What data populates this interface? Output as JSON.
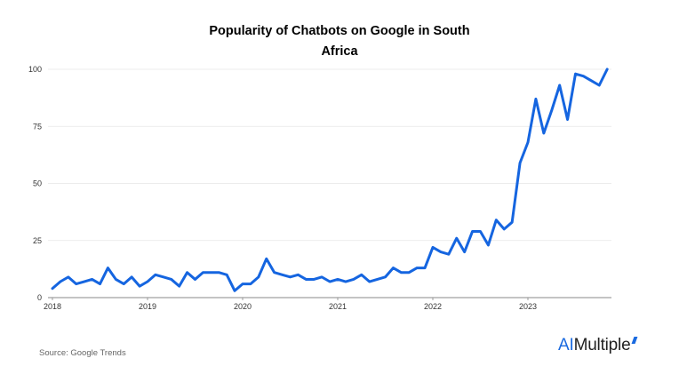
{
  "chart_data": {
    "type": "line",
    "title_line1": "Popularity of Chatbots on Google in South",
    "title_line2": "Africa",
    "xlabel": "",
    "ylabel": "",
    "x_ticks": [
      "2018",
      "2019",
      "2020",
      "2021",
      "2022",
      "2023"
    ],
    "y_ticks": [
      0,
      25,
      50,
      75,
      100
    ],
    "ylim": [
      0,
      100
    ],
    "grid": true,
    "color": "#1565e0",
    "series": [
      {
        "x": [
          "2018-01",
          "2018-02",
          "2018-03",
          "2018-04",
          "2018-05",
          "2018-06",
          "2018-07",
          "2018-08",
          "2018-09",
          "2018-10",
          "2018-11",
          "2018-12",
          "2019-01",
          "2019-02",
          "2019-03",
          "2019-04",
          "2019-05",
          "2019-06",
          "2019-07",
          "2019-08",
          "2019-09",
          "2019-10",
          "2019-11",
          "2019-12",
          "2020-01",
          "2020-02",
          "2020-03",
          "2020-04",
          "2020-05",
          "2020-06",
          "2020-07",
          "2020-08",
          "2020-09",
          "2020-10",
          "2020-11",
          "2020-12",
          "2021-01",
          "2021-02",
          "2021-03",
          "2021-04",
          "2021-05",
          "2021-06",
          "2021-07",
          "2021-08",
          "2021-09",
          "2021-10",
          "2021-11",
          "2021-12",
          "2022-01",
          "2022-02",
          "2022-03",
          "2022-04",
          "2022-05",
          "2022-06",
          "2022-07",
          "2022-08",
          "2022-09",
          "2022-10",
          "2022-11",
          "2022-12",
          "2023-01",
          "2023-02",
          "2023-03",
          "2023-04",
          "2023-05",
          "2023-06",
          "2023-07",
          "2023-08",
          "2023-09",
          "2023-10",
          "2023-11"
        ],
        "values": [
          4,
          7,
          9,
          6,
          7,
          8,
          6,
          13,
          8,
          6,
          9,
          5,
          7,
          10,
          9,
          8,
          5,
          11,
          8,
          11,
          11,
          11,
          10,
          3,
          6,
          6,
          9,
          17,
          11,
          10,
          9,
          10,
          8,
          8,
          9,
          7,
          8,
          7,
          8,
          10,
          7,
          8,
          9,
          13,
          11,
          11,
          13,
          13,
          22,
          20,
          19,
          26,
          20,
          29,
          29,
          23,
          34,
          30,
          33,
          59,
          68,
          87,
          72,
          82,
          93,
          78,
          98,
          97,
          95,
          93,
          100
        ]
      }
    ]
  },
  "footer": {
    "source": "Source: Google Trends",
    "logo_ai": "AI",
    "logo_rest": "Multiple"
  }
}
